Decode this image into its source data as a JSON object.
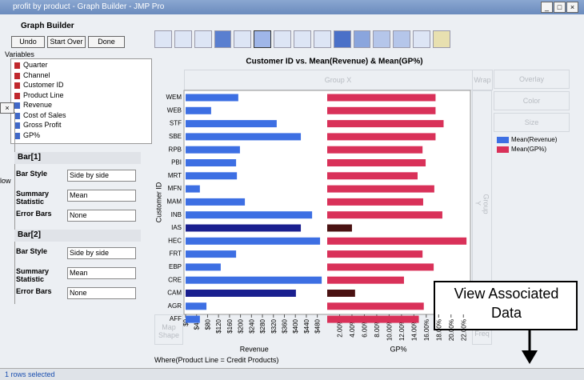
{
  "window": {
    "title": "profit by product - Graph Builder - JMP Pro"
  },
  "header": {
    "title": "Graph Builder"
  },
  "buttons": [
    "Undo",
    "Start Over",
    "Done"
  ],
  "variables": {
    "label": "Variables",
    "items": [
      "Quarter",
      "Channel",
      "Customer ID",
      "Product Line",
      "Revenue",
      "Cost of Sales",
      "Gross Profit",
      "GP%"
    ]
  },
  "partial_label": "low",
  "bar_sections": [
    {
      "title": "Bar[1]",
      "fields": [
        {
          "label": "Bar Style",
          "value": "Side by side"
        },
        {
          "label": "Summary Statistic",
          "value": "Mean"
        },
        {
          "label": "Error Bars",
          "value": "None"
        }
      ]
    },
    {
      "title": "Bar[2]",
      "fields": [
        {
          "label": "Bar Style",
          "value": "Side by side"
        },
        {
          "label": "Summary Statistic",
          "value": "Mean"
        },
        {
          "label": "Error Bars",
          "value": "None"
        }
      ]
    }
  ],
  "drop_zones": {
    "group_x": "Group X",
    "wrap": "Wrap",
    "overlay": "Overlay",
    "color": "Color",
    "size": "Size",
    "group_y": "Group Y",
    "map_shape": "Map Shape",
    "freq": "Freq"
  },
  "chart_data": {
    "type": "bar",
    "title": "Customer ID vs. Mean(Revenue) & Mean(GP%)",
    "y_label": "Customer ID",
    "categories": [
      "WEM",
      "WEB",
      "STF",
      "SBE",
      "RPB",
      "PBI",
      "MRT",
      "MFN",
      "MAM",
      "INB",
      "IAS",
      "HEC",
      "FRT",
      "EBP",
      "CRE",
      "CAM",
      "AGR",
      "AFF"
    ],
    "series": [
      {
        "name": "Mean(Revenue)",
        "color": "#3d6fe3",
        "x_label": "Revenue",
        "colors": [
          "#3d6fe3",
          "#3d6fe3",
          "#3d6fe3",
          "#3d6fe3",
          "#3d6fe3",
          "#3d6fe3",
          "#3d6fe3",
          "#3d6fe3",
          "#3d6fe3",
          "#3d6fe3",
          "#1a1f8f",
          "#3d6fe3",
          "#3d6fe3",
          "#3d6fe3",
          "#3d6fe3",
          "#1a1f8f",
          "#3d6fe3",
          "#3d6fe3"
        ],
        "values": [
          192,
          93,
          332,
          420,
          198,
          184,
          187,
          52,
          216,
          461,
          420,
          490,
          184,
          128,
          496,
          402,
          76,
          52
        ],
        "xlim": [
          0,
          500
        ],
        "xticks": [
          {
            "value": 0,
            "label": "$0"
          },
          {
            "value": 40,
            "label": "$40"
          },
          {
            "value": 80,
            "label": "$80"
          },
          {
            "value": 120,
            "label": "$120"
          },
          {
            "value": 160,
            "label": "$160"
          },
          {
            "value": 200,
            "label": "$200"
          },
          {
            "value": 240,
            "label": "$240"
          },
          {
            "value": 280,
            "label": "$280"
          },
          {
            "value": 320,
            "label": "$320"
          },
          {
            "value": 360,
            "label": "$360"
          },
          {
            "value": 400,
            "label": "$400"
          },
          {
            "value": 440,
            "label": "$440"
          },
          {
            "value": 480,
            "label": "$480"
          }
        ]
      },
      {
        "name": "Mean(GP%)",
        "color": "#d93159",
        "x_label": "GP%",
        "colors": [
          "#d93159",
          "#d93159",
          "#d93159",
          "#d93159",
          "#d93159",
          "#d93159",
          "#d93159",
          "#d93159",
          "#d93159",
          "#d93159",
          "#4a1212",
          "#d93159",
          "#d93159",
          "#d93159",
          "#d93159",
          "#4a1212",
          "#d93159",
          "#d93159"
        ],
        "values": [
          17.5,
          17.5,
          18.8,
          17.5,
          15.4,
          15.9,
          14.6,
          17.3,
          15.5,
          18.6,
          4.0,
          22.5,
          15.4,
          17.2,
          12.4,
          4.5,
          15.6,
          14.8
        ],
        "xlim": [
          0,
          23
        ],
        "xticks": [
          {
            "value": 2,
            "label": "2.00%"
          },
          {
            "value": 4,
            "label": "4.00%"
          },
          {
            "value": 6,
            "label": "6.00%"
          },
          {
            "value": 8,
            "label": "8.00%"
          },
          {
            "value": 10,
            "label": "10.00%"
          },
          {
            "value": 12,
            "label": "12.00%"
          },
          {
            "value": 14,
            "label": "14.00%"
          },
          {
            "value": 16,
            "label": "16.00%"
          },
          {
            "value": 18,
            "label": "18.00%"
          },
          {
            "value": 20,
            "label": "20.00%"
          },
          {
            "value": 22,
            "label": "22.00%"
          }
        ]
      }
    ]
  },
  "where": "Where(Product Line = Credit Products)",
  "status": "1 rows selected",
  "annotation": "View Associated Data"
}
